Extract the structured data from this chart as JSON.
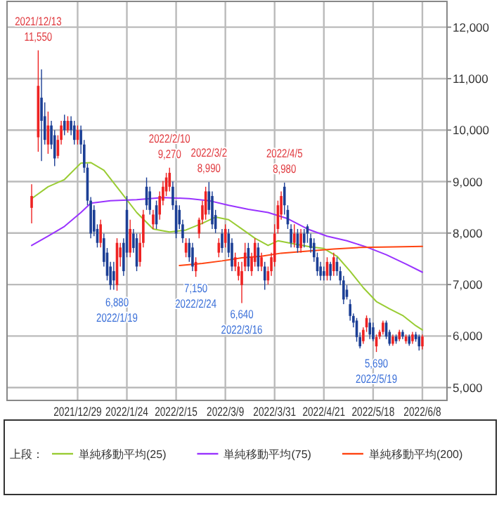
{
  "chart_data": {
    "type": "candlestick",
    "categories": [
      null,
      null,
      null,
      null,
      null,
      null,
      null,
      null,
      null,
      null,
      null,
      null,
      null,
      null,
      null,
      null,
      null,
      null,
      null,
      null,
      null,
      "2021/12/29",
      null,
      null,
      null,
      null,
      null,
      null,
      null,
      null,
      null,
      null,
      null,
      null,
      null,
      null,
      "2022/1/24",
      null,
      null,
      null,
      null,
      null,
      null,
      null,
      null,
      null,
      null,
      null,
      null,
      null,
      null,
      "2022/2/15",
      null,
      null,
      null,
      null,
      null,
      null,
      null,
      null,
      null,
      null,
      null,
      null,
      null,
      null,
      "2022/3/9",
      null,
      null,
      null,
      null,
      null,
      null,
      null,
      null,
      null,
      null,
      null,
      null,
      null,
      null,
      "2022/3/31",
      null,
      null,
      null,
      null,
      null,
      null,
      null,
      null,
      null,
      null,
      null,
      null,
      null,
      null,
      "2022/4/21",
      null,
      null,
      null,
      null,
      null,
      null,
      null,
      null,
      null,
      null,
      null,
      null,
      null,
      null,
      "2022/5/18",
      null,
      null,
      null,
      null,
      null,
      null,
      null,
      null,
      null,
      null,
      null,
      null,
      null,
      null,
      "2022/6/8",
      null,
      null,
      null,
      null,
      null,
      null,
      null
    ],
    "ohlc": [
      null,
      null,
      null,
      null,
      null,
      null,
      null,
      [
        8490,
        8950,
        8190,
        8720
      ],
      null,
      [
        9860,
        11550,
        9580,
        10860
      ],
      [
        10630,
        11180,
        9400,
        10180
      ],
      [
        10270,
        10540,
        9720,
        9810
      ],
      [
        9720,
        10360,
        9540,
        10090
      ],
      [
        10090,
        10180,
        9630,
        9720
      ],
      [
        9900,
        10000,
        9300,
        9450
      ],
      [
        9500,
        9900,
        9450,
        9810
      ],
      [
        9810,
        10180,
        9720,
        10090
      ],
      [
        10180,
        10300,
        9900,
        10000
      ],
      [
        10000,
        10270,
        9950,
        10180
      ],
      [
        10180,
        10270,
        9900,
        10000
      ],
      [
        10090,
        10180,
        9720,
        9810
      ],
      [
        9810,
        10090,
        9720,
        10000
      ],
      [
        10000,
        10090,
        9540,
        9720
      ],
      [
        9720,
        9810,
        9170,
        9270
      ],
      [
        9270,
        9350,
        8540,
        8630
      ],
      [
        8630,
        8700,
        7900,
        7990
      ],
      [
        8450,
        8540,
        7940,
        8030
      ],
      [
        8080,
        8170,
        7720,
        7810
      ],
      [
        7810,
        8260,
        7720,
        8170
      ],
      [
        7900,
        7990,
        7350,
        7440
      ],
      [
        7620,
        7710,
        7080,
        7170
      ],
      [
        7350,
        7440,
        6900,
        6990
      ],
      [
        7260,
        7440,
        6900,
        7080
      ],
      [
        6990,
        7900,
        6880,
        7810
      ],
      [
        7530,
        7810,
        7350,
        7720
      ],
      [
        7810,
        7900,
        7170,
        7260
      ],
      [
        8450,
        8720,
        7530,
        7620
      ],
      [
        7620,
        8260,
        7530,
        8080
      ],
      [
        7990,
        8080,
        7620,
        7710
      ],
      [
        7900,
        7990,
        7260,
        7350
      ],
      [
        7440,
        7990,
        7350,
        7810
      ],
      [
        7810,
        8450,
        7720,
        8360
      ],
      [
        8900,
        9080,
        8450,
        8540
      ],
      [
        8810,
        8900,
        8360,
        8450
      ],
      [
        8170,
        8450,
        8080,
        8360
      ],
      [
        8540,
        8630,
        8080,
        8170
      ],
      [
        8360,
        8810,
        8260,
        8720
      ],
      [
        8630,
        9010,
        8540,
        8900
      ],
      [
        8810,
        9170,
        8720,
        9080
      ],
      [
        8900,
        9270,
        8810,
        9170
      ],
      [
        8900,
        9000,
        8450,
        8540
      ],
      [
        8540,
        8630,
        7900,
        7990
      ],
      [
        8450,
        8540,
        8080,
        8170
      ],
      [
        8170,
        8260,
        7810,
        7900
      ],
      [
        7620,
        7900,
        7530,
        7810
      ],
      [
        7810,
        7900,
        7440,
        7530
      ],
      [
        7720,
        7810,
        7260,
        7350
      ],
      [
        7260,
        7530,
        7150,
        7440
      ],
      [
        7990,
        8300,
        7900,
        8260
      ],
      [
        8260,
        8630,
        8170,
        8540
      ],
      [
        8360,
        8900,
        8260,
        8810
      ],
      [
        8810,
        8990,
        8360,
        8450
      ],
      [
        8720,
        8810,
        8080,
        8170
      ],
      [
        8350,
        8450,
        8000,
        8080
      ],
      [
        7620,
        7900,
        7530,
        7810
      ],
      [
        7990,
        8080,
        7620,
        7710
      ],
      [
        7810,
        8170,
        7720,
        8080
      ],
      [
        7990,
        8080,
        7530,
        7620
      ],
      [
        7810,
        7900,
        7260,
        7350
      ],
      [
        7350,
        7620,
        7260,
        7530
      ],
      [
        7170,
        7440,
        7080,
        7350
      ],
      [
        6990,
        7440,
        6640,
        7260
      ],
      [
        7350,
        7810,
        7260,
        7620
      ],
      [
        7710,
        7810,
        7260,
        7350
      ],
      [
        7260,
        7620,
        7170,
        7530
      ],
      [
        7440,
        7900,
        7350,
        7810
      ],
      [
        7720,
        7810,
        7260,
        7350
      ],
      [
        7350,
        7620,
        7260,
        7530
      ],
      [
        7350,
        7440,
        6900,
        7080
      ],
      [
        7080,
        7350,
        7000,
        7260
      ],
      [
        7260,
        7620,
        7170,
        7530
      ],
      [
        7440,
        8170,
        7350,
        7990
      ],
      [
        8080,
        8630,
        7990,
        8540
      ],
      [
        8360,
        8810,
        8260,
        8720
      ],
      [
        8900,
        8980,
        8360,
        8540
      ],
      [
        8450,
        8540,
        8080,
        8170
      ],
      [
        8080,
        8170,
        7720,
        7810
      ],
      [
        7810,
        8170,
        7720,
        7990
      ],
      [
        7990,
        8080,
        7620,
        7710
      ],
      [
        7710,
        8080,
        7620,
        7990
      ],
      [
        7990,
        8080,
        7720,
        7810
      ],
      [
        8130,
        8170,
        7810,
        7990
      ],
      [
        7900,
        7990,
        7620,
        7710
      ],
      [
        7810,
        7900,
        7440,
        7530
      ],
      [
        7530,
        7620,
        7170,
        7260
      ],
      [
        7350,
        7440,
        7080,
        7170
      ],
      [
        7260,
        7350,
        7080,
        7170
      ],
      [
        7170,
        7530,
        7080,
        7440
      ],
      [
        7400,
        7440,
        7080,
        7170
      ],
      [
        7260,
        7620,
        7170,
        7530
      ],
      [
        7440,
        7530,
        7170,
        7260
      ],
      [
        7260,
        7350,
        6990,
        7080
      ],
      [
        7080,
        7170,
        6620,
        6710
      ],
      [
        6900,
        6990,
        6710,
        6760
      ],
      [
        6620,
        6710,
        6300,
        6390
      ],
      [
        6390,
        6440,
        6170,
        6260
      ],
      [
        6300,
        6350,
        5890,
        5980
      ],
      [
        5980,
        6070,
        5760,
        5800
      ],
      [
        5900,
        6170,
        5850,
        6120
      ],
      [
        6170,
        6400,
        6080,
        6350
      ],
      [
        6260,
        6350,
        5940,
        6030
      ],
      [
        6170,
        6260,
        5900,
        5940
      ],
      [
        5800,
        6030,
        5690,
        5980
      ],
      [
        5990,
        6120,
        5940,
        6080
      ],
      [
        6080,
        6300,
        6030,
        6260
      ],
      [
        6260,
        6300,
        5940,
        5990
      ],
      [
        6080,
        6120,
        5810,
        5850
      ],
      [
        5850,
        6030,
        5810,
        5990
      ],
      [
        5990,
        6030,
        5850,
        5900
      ],
      [
        5940,
        6120,
        5900,
        6080
      ],
      [
        6080,
        6120,
        5940,
        5990
      ],
      [
        5900,
        6030,
        5850,
        5990
      ],
      [
        5990,
        6030,
        5810,
        5850
      ],
      [
        5900,
        6080,
        5850,
        6030
      ],
      [
        6030,
        6080,
        5890,
        5940
      ],
      [
        5990,
        6030,
        5720,
        5800
      ],
      [
        5800,
        6030,
        5740,
        5990
      ],
      null,
      null,
      null,
      null,
      null,
      null,
      null
    ],
    "series": [
      {
        "type": "line",
        "name": "単純移動平均(25)",
        "color": "#99cc33",
        "values": [
          null,
          null,
          null,
          null,
          null,
          null,
          null,
          8670,
          null,
          null,
          null,
          null,
          8900,
          null,
          null,
          null,
          null,
          9040,
          null,
          null,
          null,
          null,
          9360,
          null,
          null,
          9370,
          null,
          null,
          null,
          9220,
          null,
          null,
          null,
          null,
          8810,
          null,
          null,
          null,
          null,
          8400,
          null,
          null,
          null,
          null,
          8080,
          null,
          null,
          null,
          null,
          8020,
          null,
          null,
          null,
          null,
          8060,
          null,
          null,
          null,
          null,
          8190,
          null,
          null,
          null,
          8310,
          null,
          null,
          null,
          8260,
          null,
          null,
          null,
          8080,
          null,
          null,
          null,
          7900,
          null,
          null,
          null,
          7760,
          null,
          null,
          7850,
          null,
          null,
          null,
          null,
          7790,
          null,
          null,
          null,
          null,
          7730,
          null,
          null,
          null,
          7700,
          null,
          null,
          null,
          7550,
          null,
          null,
          null,
          7260,
          null,
          null,
          null,
          6940,
          null,
          null,
          null,
          6670,
          null,
          null,
          null,
          6530,
          null,
          null,
          null,
          6400,
          null,
          null,
          null,
          6200,
          null,
          6120,
          null,
          null,
          null,
          null,
          null,
          null,
          null
        ]
      },
      {
        "type": "line",
        "name": "単純移動平均(75)",
        "color": "#9933ff",
        "values": [
          null,
          null,
          null,
          null,
          null,
          null,
          null,
          7760,
          null,
          null,
          null,
          null,
          7940,
          null,
          null,
          null,
          null,
          8130,
          null,
          null,
          null,
          null,
          8400,
          null,
          null,
          8580,
          null,
          null,
          null,
          null,
          null,
          8630,
          null,
          null,
          null,
          null,
          null,
          null,
          null,
          8650,
          null,
          null,
          null,
          null,
          null,
          null,
          null,
          8690,
          null,
          null,
          null,
          null,
          null,
          null,
          null,
          8670,
          null,
          null,
          null,
          null,
          null,
          8630,
          null,
          null,
          null,
          null,
          null,
          8540,
          null,
          null,
          null,
          null,
          null,
          8460,
          null,
          null,
          null,
          null,
          null,
          8400,
          null,
          null,
          null,
          null,
          null,
          8280,
          null,
          null,
          null,
          null,
          null,
          8080,
          null,
          null,
          null,
          null,
          null,
          7940,
          null,
          null,
          null,
          null,
          null,
          7850,
          null,
          null,
          null,
          null,
          null,
          7730,
          null,
          null,
          null,
          null,
          null,
          7580,
          null,
          null,
          null,
          null,
          null,
          7400,
          null,
          null,
          null,
          null,
          7240,
          null,
          null,
          null,
          null,
          null,
          null,
          null
        ]
      },
      {
        "type": "line",
        "name": "単純移動平均(200)",
        "color": "#ff4411",
        "values": [
          null,
          null,
          null,
          null,
          null,
          null,
          null,
          null,
          null,
          null,
          null,
          null,
          null,
          null,
          null,
          null,
          null,
          null,
          null,
          null,
          null,
          null,
          null,
          null,
          null,
          null,
          null,
          null,
          null,
          null,
          null,
          null,
          null,
          null,
          null,
          null,
          null,
          null,
          null,
          null,
          null,
          null,
          null,
          null,
          null,
          null,
          null,
          null,
          null,
          null,
          null,
          null,
          7370,
          null,
          null,
          null,
          null,
          null,
          null,
          7410,
          null,
          null,
          null,
          null,
          null,
          7460,
          null,
          null,
          null,
          null,
          null,
          7520,
          null,
          null,
          null,
          null,
          null,
          7550,
          null,
          null,
          null,
          null,
          null,
          7610,
          null,
          null,
          null,
          null,
          null,
          null,
          null,
          7650,
          null,
          null,
          null,
          null,
          null,
          null,
          null,
          7690,
          null,
          null,
          null,
          null,
          null,
          null,
          null,
          7720,
          null,
          null,
          null,
          null,
          null,
          null,
          null,
          null,
          null,
          7730,
          null,
          null,
          null,
          null,
          null,
          null,
          null,
          null,
          7740,
          null,
          null,
          null,
          null,
          null,
          null,
          null
        ]
      }
    ],
    "ylim": [
      4750,
      12500
    ],
    "yticks": [
      {
        "value": 5000,
        "label": "5,000"
      },
      {
        "value": 6000,
        "label": "6,000"
      },
      {
        "value": 7000,
        "label": "7,000"
      },
      {
        "value": 8000,
        "label": "8,000"
      },
      {
        "value": 9000,
        "label": "9,000"
      },
      {
        "value": 10000,
        "label": "10,000"
      },
      {
        "value": 11000,
        "label": "11,000"
      },
      {
        "value": 12000,
        "label": "12,000"
      }
    ],
    "grid": true,
    "legend": "bottom",
    "legend_title": "上段：",
    "annotations": [
      {
        "text": "2021/12/13",
        "y": 11550
      },
      {
        "text": "11,550",
        "y": 11550
      },
      {
        "text": "2022/2/10",
        "y": 9270
      },
      {
        "text": "9,270",
        "y": 9270
      },
      {
        "text": "2022/3/2",
        "y": 8990
      },
      {
        "text": "8,990",
        "y": 8990
      },
      {
        "text": "2022/4/5",
        "y": 8980
      },
      {
        "text": "8,980",
        "y": 8980
      },
      {
        "text": "6,880",
        "y": 6880
      },
      {
        "text": "2022/1/19",
        "y": 6880
      },
      {
        "text": "7,150",
        "y": 7150
      },
      {
        "text": "2022/2/24",
        "y": 7150
      },
      {
        "text": "6,640",
        "y": 6640
      },
      {
        "text": "2022/3/16",
        "y": 6640
      },
      {
        "text": "5,690",
        "y": 5690
      },
      {
        "text": "2022/5/19",
        "y": 5690
      }
    ]
  }
}
